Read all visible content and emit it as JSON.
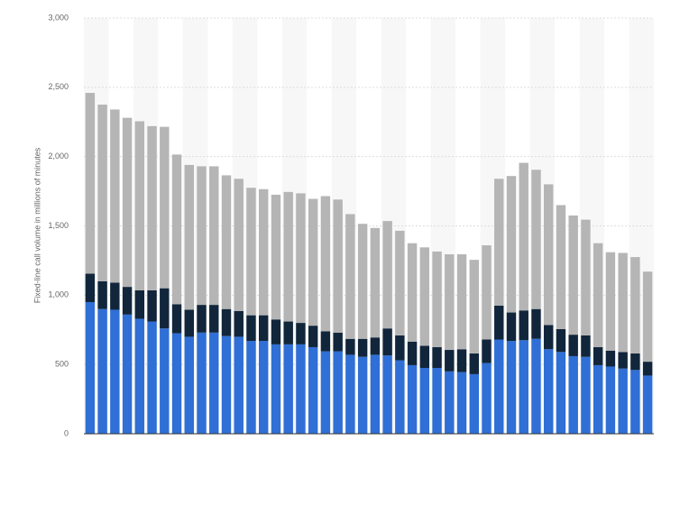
{
  "chart_data": {
    "type": "stacked-bar",
    "y_label": "Fixed-line call volume in millions of minutes",
    "categories": [
      null,
      null,
      null,
      null,
      null,
      null,
      null,
      null,
      null,
      null,
      null,
      null,
      null,
      null,
      null,
      null,
      null,
      null,
      null,
      null,
      null,
      null,
      null,
      null,
      null,
      null,
      null,
      null,
      null,
      null,
      null,
      null,
      null,
      null,
      null,
      null,
      null,
      null,
      null,
      null,
      null,
      null,
      null,
      null,
      null,
      null
    ],
    "series": [
      {
        "color": "#2f6fd6",
        "values": [
          950,
          900,
          895,
          860,
          830,
          810,
          760,
          725,
          700,
          730,
          730,
          705,
          700,
          670,
          670,
          645,
          645,
          645,
          625,
          595,
          595,
          570,
          555,
          570,
          565,
          530,
          495,
          475,
          475,
          450,
          445,
          430,
          510,
          680,
          670,
          675,
          685,
          610,
          590,
          560,
          555,
          495,
          485,
          470,
          460,
          420
        ]
      },
      {
        "color": "#11263b",
        "values": [
          205,
          200,
          195,
          200,
          205,
          225,
          290,
          210,
          195,
          200,
          200,
          195,
          185,
          185,
          185,
          180,
          165,
          155,
          155,
          145,
          135,
          115,
          130,
          125,
          195,
          180,
          170,
          160,
          150,
          155,
          165,
          150,
          170,
          245,
          205,
          215,
          215,
          175,
          165,
          155,
          155,
          130,
          115,
          120,
          120,
          100
        ]
      },
      {
        "color": "#b5b5b5",
        "values": [
          1305,
          1275,
          1250,
          1220,
          1220,
          1185,
          1165,
          1080,
          1045,
          1000,
          1000,
          965,
          955,
          920,
          910,
          900,
          935,
          935,
          915,
          975,
          960,
          900,
          830,
          790,
          775,
          755,
          710,
          710,
          690,
          690,
          685,
          675,
          680,
          915,
          985,
          1065,
          1005,
          1015,
          895,
          860,
          835,
          750,
          710,
          715,
          695,
          650
        ]
      }
    ],
    "ylim": [
      0,
      3000
    ],
    "yticks": [
      0,
      500,
      {
        "value": 1000,
        "label": "1,000"
      },
      {
        "value": 1500,
        "label": "1,500"
      },
      {
        "value": 2000,
        "label": "2,000"
      },
      {
        "value": 2500,
        "label": "2,500"
      },
      {
        "value": 3000,
        "label": "3,000"
      }
    ],
    "grid": true
  }
}
